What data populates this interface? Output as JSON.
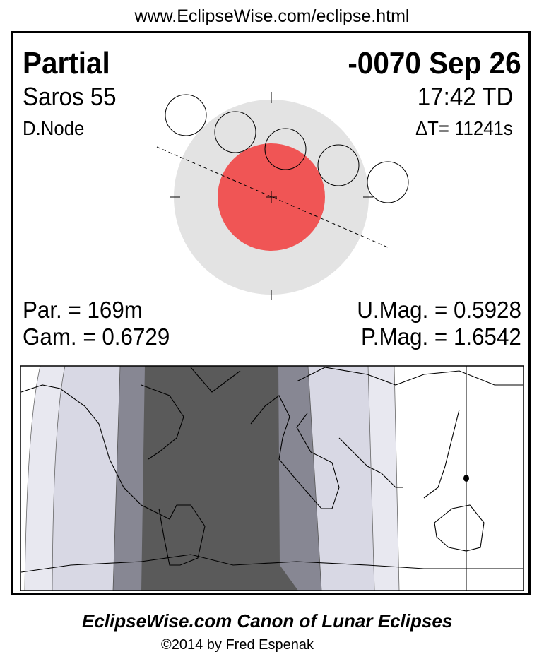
{
  "url": "www.EclipseWise.com/eclipse.html",
  "eclipse": {
    "type": "Partial",
    "date": "-0070 Sep 26",
    "saros": "Saros  55",
    "time": "17:42 TD",
    "node": "D.Node",
    "delta_t": "ΔT=  11241s",
    "par": "Par. = 169m",
    "gam": "Gam. = 0.6729",
    "umag": "U.Mag. = 0.5928",
    "pmag": "P.Mag. = 1.6542"
  },
  "colors": {
    "umbra": "#f05555",
    "penumbra": "#e3e3e3",
    "map_dark": "#5a5a5a",
    "map_medium": "#878793",
    "map_light": "#d8d8e4",
    "map_lightest": "#e8e8f0"
  },
  "footer": {
    "title": "EclipseWise.com Canon of Lunar Eclipses",
    "copyright": "©2014 by Fred Espenak"
  }
}
